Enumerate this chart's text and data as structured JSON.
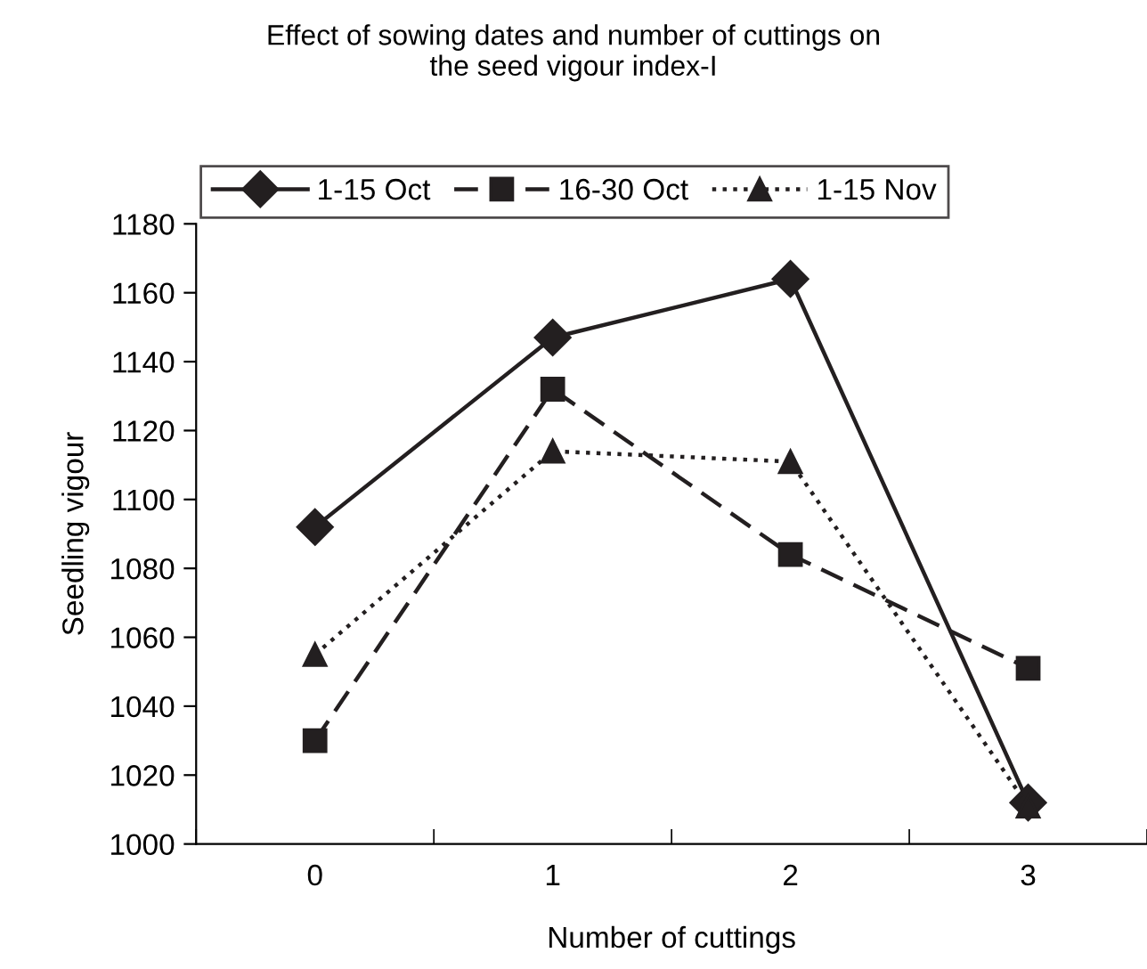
{
  "chart_data": {
    "type": "line",
    "title": "Effect of sowing dates and number of cuttings on\nthe seed vigour index-I",
    "xlabel": "Number of cuttings",
    "ylabel": "Seedling vigour",
    "categories": [
      "0",
      "1",
      "2",
      "3"
    ],
    "series": [
      {
        "name": "1-15 Oct",
        "color": "#231f20",
        "marker": "diamond",
        "line_style": "solid",
        "values": [
          1092,
          1147,
          1164,
          1012
        ]
      },
      {
        "name": "16-30 Oct",
        "color": "#231f20",
        "marker": "square",
        "line_style": "dashed",
        "values": [
          1030,
          1132,
          1084,
          1051
        ]
      },
      {
        "name": "1-15 Nov",
        "color": "#231f20",
        "marker": "triangle",
        "line_style": "dotted",
        "values": [
          1055,
          1114,
          1111,
          1011
        ]
      }
    ],
    "ylim": [
      1000,
      1180
    ],
    "yticks": [
      1000,
      1020,
      1040,
      1060,
      1080,
      1100,
      1120,
      1140,
      1160,
      1180
    ],
    "grid": false,
    "legend": "top"
  }
}
